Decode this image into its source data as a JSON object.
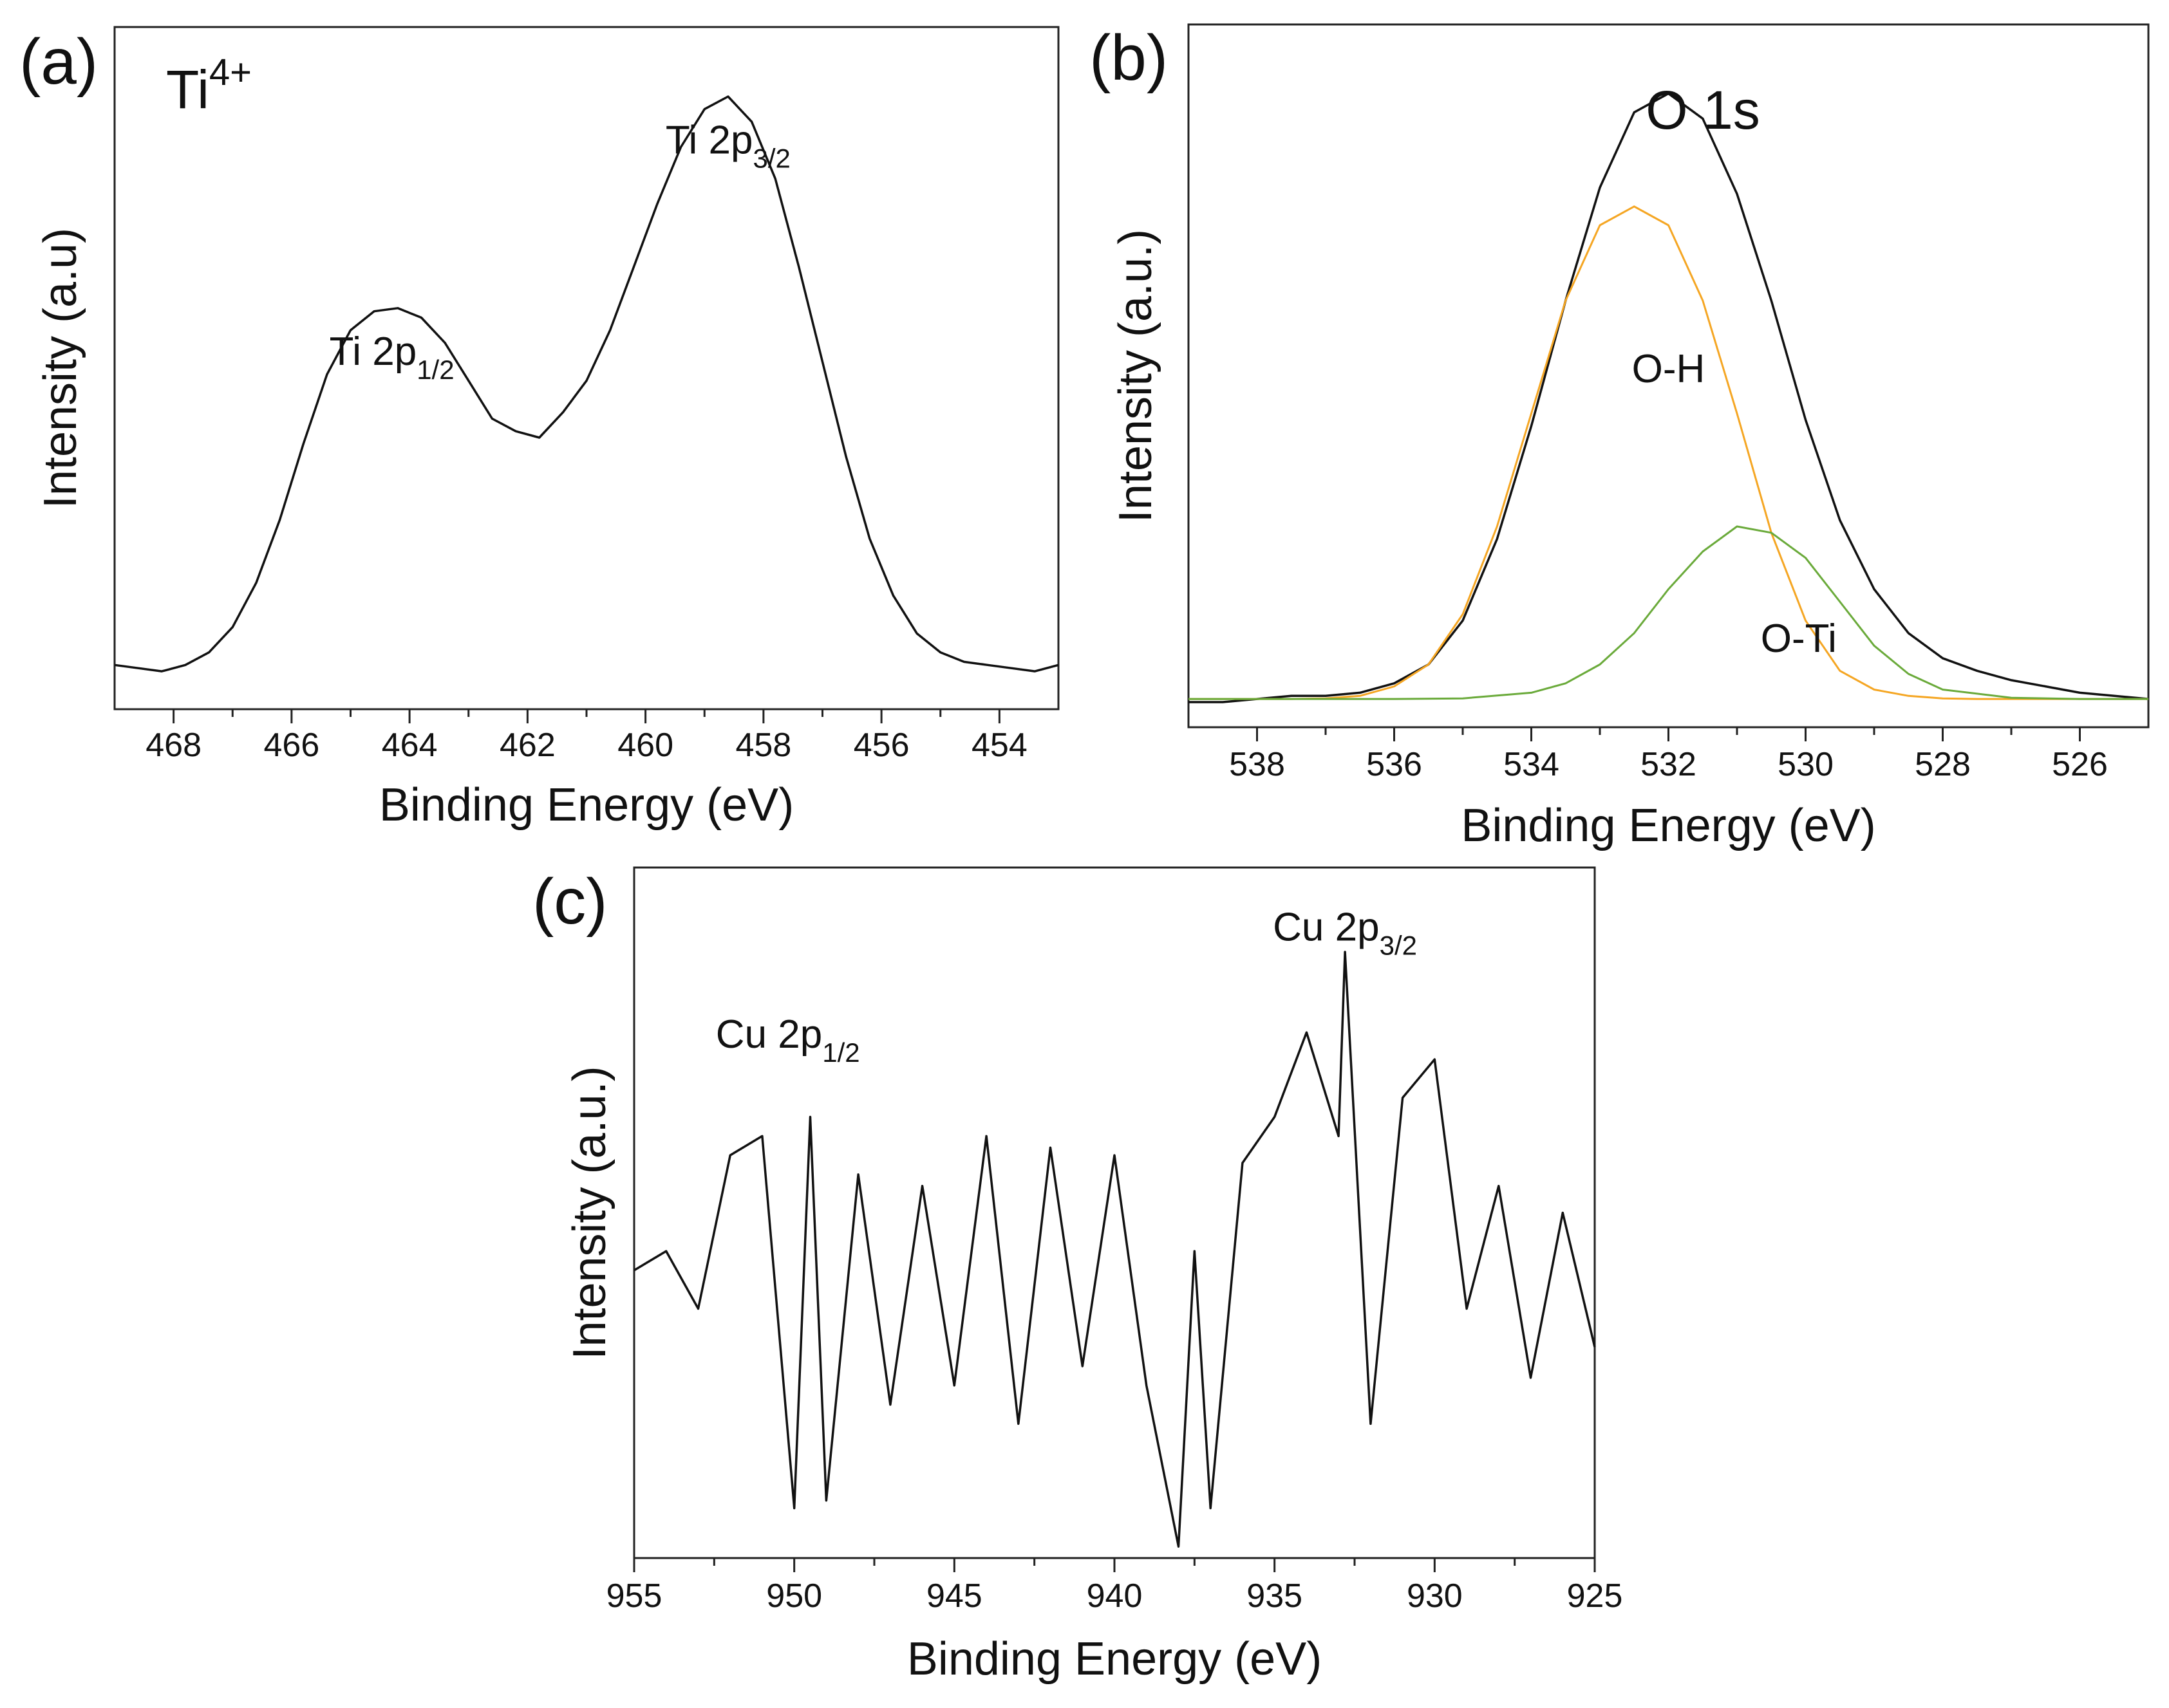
{
  "chart_data": [
    {
      "id": "a",
      "type": "line",
      "panel_label": "(a)",
      "title": {
        "base": "Ti",
        "sup": "4+"
      },
      "xlabel": "Binding Energy (eV)",
      "ylabel": "Intensity (a.u)",
      "xlim": [
        469,
        453
      ],
      "ylim": [
        0,
        1.08
      ],
      "xticks": [
        468,
        466,
        464,
        462,
        460,
        458,
        456,
        454
      ],
      "annotations": [
        {
          "base": "Ti 2p",
          "sub": "1/2",
          "x": 464.3,
          "y": 0.545
        },
        {
          "base": "Ti 2p",
          "sub": "3/2",
          "x": 458.6,
          "y": 0.88
        }
      ],
      "series": [
        {
          "name": "Ti 2p",
          "color": "#111111",
          "x": [
            469.0,
            468.6,
            468.2,
            467.8,
            467.4,
            467.0,
            466.6,
            466.2,
            465.8,
            465.4,
            465.0,
            464.6,
            464.2,
            463.8,
            463.4,
            463.0,
            462.6,
            462.2,
            461.8,
            461.4,
            461.0,
            460.6,
            460.2,
            459.8,
            459.4,
            459.0,
            458.6,
            458.2,
            457.8,
            457.4,
            457.0,
            456.6,
            456.2,
            455.8,
            455.4,
            455.0,
            454.6,
            454.2,
            453.8,
            453.4,
            453.0
          ],
          "y": [
            0.07,
            0.065,
            0.06,
            0.07,
            0.09,
            0.13,
            0.2,
            0.3,
            0.42,
            0.53,
            0.6,
            0.63,
            0.635,
            0.62,
            0.58,
            0.52,
            0.46,
            0.44,
            0.43,
            0.47,
            0.52,
            0.6,
            0.7,
            0.8,
            0.89,
            0.95,
            0.97,
            0.93,
            0.84,
            0.7,
            0.55,
            0.4,
            0.27,
            0.18,
            0.12,
            0.09,
            0.075,
            0.07,
            0.065,
            0.06,
            0.07
          ]
        }
      ]
    },
    {
      "id": "b",
      "type": "line",
      "panel_label": "(b)",
      "title": "O 1s",
      "xlabel": "Binding Energy (eV)",
      "ylabel": "Intensity (a.u.)",
      "xlim": [
        539,
        525
      ],
      "ylim": [
        0,
        1.12
      ],
      "xticks": [
        538,
        536,
        534,
        532,
        530,
        528,
        526
      ],
      "annotations": [
        {
          "text": "O-H",
          "x": 532.0,
          "y": 0.55
        },
        {
          "text": "O-Ti",
          "x": 530.1,
          "y": 0.12
        }
      ],
      "series": [
        {
          "name": "O 1s envelope",
          "color": "#111111",
          "x": [
            539.0,
            538.5,
            538.0,
            537.5,
            537.0,
            536.5,
            536.0,
            535.5,
            535.0,
            534.5,
            534.0,
            533.5,
            533.0,
            532.5,
            532.0,
            531.5,
            531.0,
            530.5,
            530.0,
            529.5,
            529.0,
            528.5,
            528.0,
            527.5,
            527.0,
            526.5,
            526.0,
            525.5,
            525.0
          ],
          "y": [
            0.04,
            0.04,
            0.045,
            0.05,
            0.05,
            0.055,
            0.07,
            0.1,
            0.17,
            0.3,
            0.48,
            0.68,
            0.86,
            0.98,
            1.01,
            0.97,
            0.85,
            0.68,
            0.49,
            0.33,
            0.22,
            0.15,
            0.11,
            0.09,
            0.075,
            0.065,
            0.055,
            0.05,
            0.045
          ]
        },
        {
          "name": "O-H",
          "color": "#f5a623",
          "x": [
            539.0,
            538.5,
            538.0,
            537.5,
            537.0,
            536.5,
            536.0,
            535.5,
            535.0,
            534.5,
            534.0,
            533.5,
            533.0,
            532.5,
            532.0,
            531.5,
            531.0,
            530.5,
            530.0,
            529.5,
            529.0,
            528.5,
            528.0,
            527.5,
            527.0,
            526.5,
            526.0,
            525.5,
            525.0
          ],
          "y": [
            0.045,
            0.045,
            0.045,
            0.045,
            0.046,
            0.05,
            0.065,
            0.1,
            0.18,
            0.32,
            0.5,
            0.68,
            0.8,
            0.83,
            0.8,
            0.68,
            0.5,
            0.31,
            0.17,
            0.09,
            0.06,
            0.05,
            0.046,
            0.045,
            0.045,
            0.045,
            0.045,
            0.045,
            0.045
          ]
        },
        {
          "name": "O-Ti",
          "color": "#6aaa3a",
          "x": [
            539.0,
            538.0,
            537.0,
            536.0,
            535.0,
            534.0,
            533.5,
            533.0,
            532.5,
            532.0,
            531.5,
            531.0,
            530.5,
            530.0,
            529.5,
            529.0,
            528.5,
            528.0,
            527.0,
            526.0,
            525.0
          ],
          "y": [
            0.045,
            0.045,
            0.045,
            0.045,
            0.046,
            0.055,
            0.07,
            0.1,
            0.15,
            0.22,
            0.28,
            0.32,
            0.31,
            0.27,
            0.2,
            0.13,
            0.085,
            0.06,
            0.047,
            0.045,
            0.045
          ]
        }
      ]
    },
    {
      "id": "c",
      "type": "line",
      "panel_label": "(c)",
      "xlabel": "Binding Energy (eV)",
      "ylabel": "Intensity (a.u.)",
      "xlim": [
        955,
        925
      ],
      "ylim": [
        -0.75,
        1.05
      ],
      "xticks": [
        955,
        950,
        945,
        940,
        935,
        930,
        925
      ],
      "annotations": [
        {
          "base": "Cu 2p",
          "sub": "1/2",
          "x": 950.2,
          "y": 0.58
        },
        {
          "base": "Cu 2p",
          "sub": "3/2",
          "x": 932.8,
          "y": 0.86
        }
      ],
      "series": [
        {
          "name": "Cu 2p",
          "color": "#111111",
          "x": [
            955.0,
            954.0,
            953.0,
            952.0,
            951.0,
            950.0,
            949.5,
            949.0,
            948.0,
            947.0,
            946.0,
            945.0,
            944.0,
            943.0,
            942.0,
            941.0,
            940.0,
            939.0,
            938.0,
            937.5,
            937.0,
            936.0,
            935.0,
            934.0,
            933.0,
            932.8,
            932.0,
            931.0,
            930.0,
            929.0,
            928.0,
            927.0,
            926.0,
            925.0
          ],
          "y": [
            0.0,
            0.05,
            -0.1,
            0.3,
            0.35,
            -0.62,
            0.4,
            -0.6,
            0.25,
            -0.35,
            0.22,
            -0.3,
            0.35,
            -0.4,
            0.32,
            -0.25,
            0.3,
            -0.3,
            -0.72,
            0.05,
            -0.62,
            0.28,
            0.4,
            0.62,
            0.35,
            0.83,
            -0.4,
            0.45,
            0.55,
            -0.1,
            0.22,
            -0.28,
            0.15,
            -0.2
          ]
        }
      ]
    }
  ]
}
